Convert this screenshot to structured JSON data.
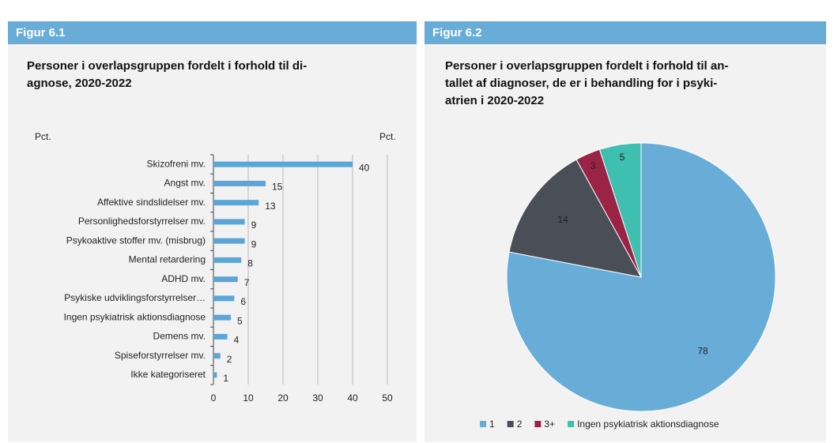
{
  "chart_data": [
    {
      "type": "barh",
      "figure_label": "Figur 6.1",
      "title": [
        "Personer i overlapsgruppen fordelt i forhold til di-",
        "agnose, 2020-2022"
      ],
      "axis_label_left": "Pct.",
      "axis_label_right": "Pct.",
      "categories": [
        "Skizofreni mv.",
        "Angst mv.",
        "Affektive sindslidelser mv.",
        "Personlighedsforstyrrelser mv.",
        "Psykoaktive stoffer mv. (misbrug)",
        "Mental retardering",
        "ADHD mv.",
        "Psykiske udviklingsforstyrrelser…",
        "Ingen psykiatrisk aktionsdiagnose",
        "Demens mv.",
        "Spiseforstyrrelser mv.",
        "Ikke kategoriseret"
      ],
      "values": [
        40,
        15,
        13,
        9,
        9,
        8,
        7,
        6,
        5,
        4,
        2,
        1
      ],
      "color": "#5ba6d6",
      "xlim": [
        0,
        50
      ],
      "xticks": [
        0,
        10,
        20,
        30,
        40,
        50
      ],
      "grid": true
    },
    {
      "type": "pie",
      "figure_label": "Figur 6.2",
      "title": [
        "Personer i overlapsgruppen fordelt i forhold til an-",
        "tallet af diagnoser, de er i behandling for i psyki-",
        "atrien i 2020-2022"
      ],
      "categories": [
        "1",
        "2",
        "3+",
        "Ingen psykiatrisk aktionsdiagnose"
      ],
      "values": [
        78,
        14,
        3,
        5
      ],
      "colors": [
        "#68acd8",
        "#4a4e56",
        "#9a2346",
        "#3fbfb0"
      ],
      "legend": "bottom"
    }
  ]
}
